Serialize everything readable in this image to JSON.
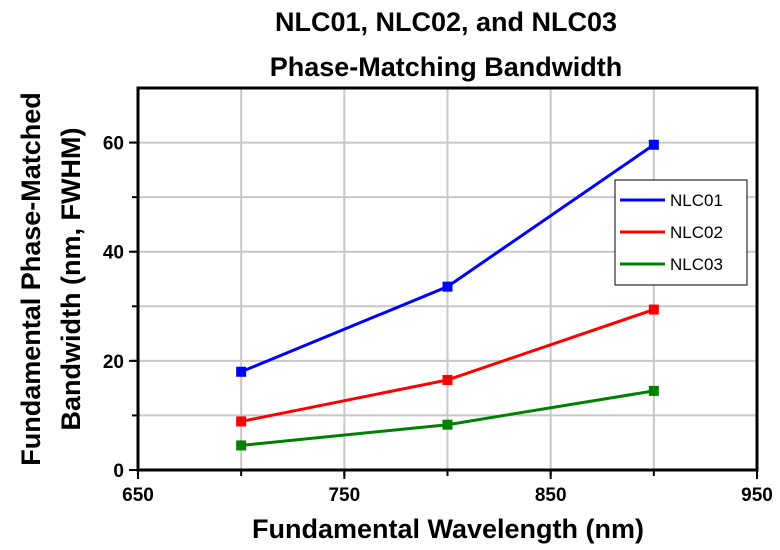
{
  "chart_data": {
    "type": "line",
    "title": [
      "NLC01, NLC02, and NLC03",
      "Phase-Matching Bandwidth"
    ],
    "xlabel": "Fundamental Wavelength (nm)",
    "ylabel": [
      "Fundamental Phase-Matched",
      "Bandwidth (nm, FWHM)"
    ],
    "xlim": [
      650,
      950
    ],
    "ylim": [
      0,
      70
    ],
    "xticks": [
      650,
      750,
      850,
      950
    ],
    "yticks": [
      0,
      20,
      40,
      60
    ],
    "grid": true,
    "legend_position": "right",
    "x": [
      700,
      800,
      900
    ],
    "series": [
      {
        "name": "NLC01",
        "color": "#0000ff",
        "values": [
          18.0,
          33.6,
          59.6
        ]
      },
      {
        "name": "NLC02",
        "color": "#ff0000",
        "values": [
          8.9,
          16.5,
          29.4
        ]
      },
      {
        "name": "NLC03",
        "color": "#008000",
        "values": [
          4.5,
          8.3,
          14.5
        ]
      }
    ]
  }
}
